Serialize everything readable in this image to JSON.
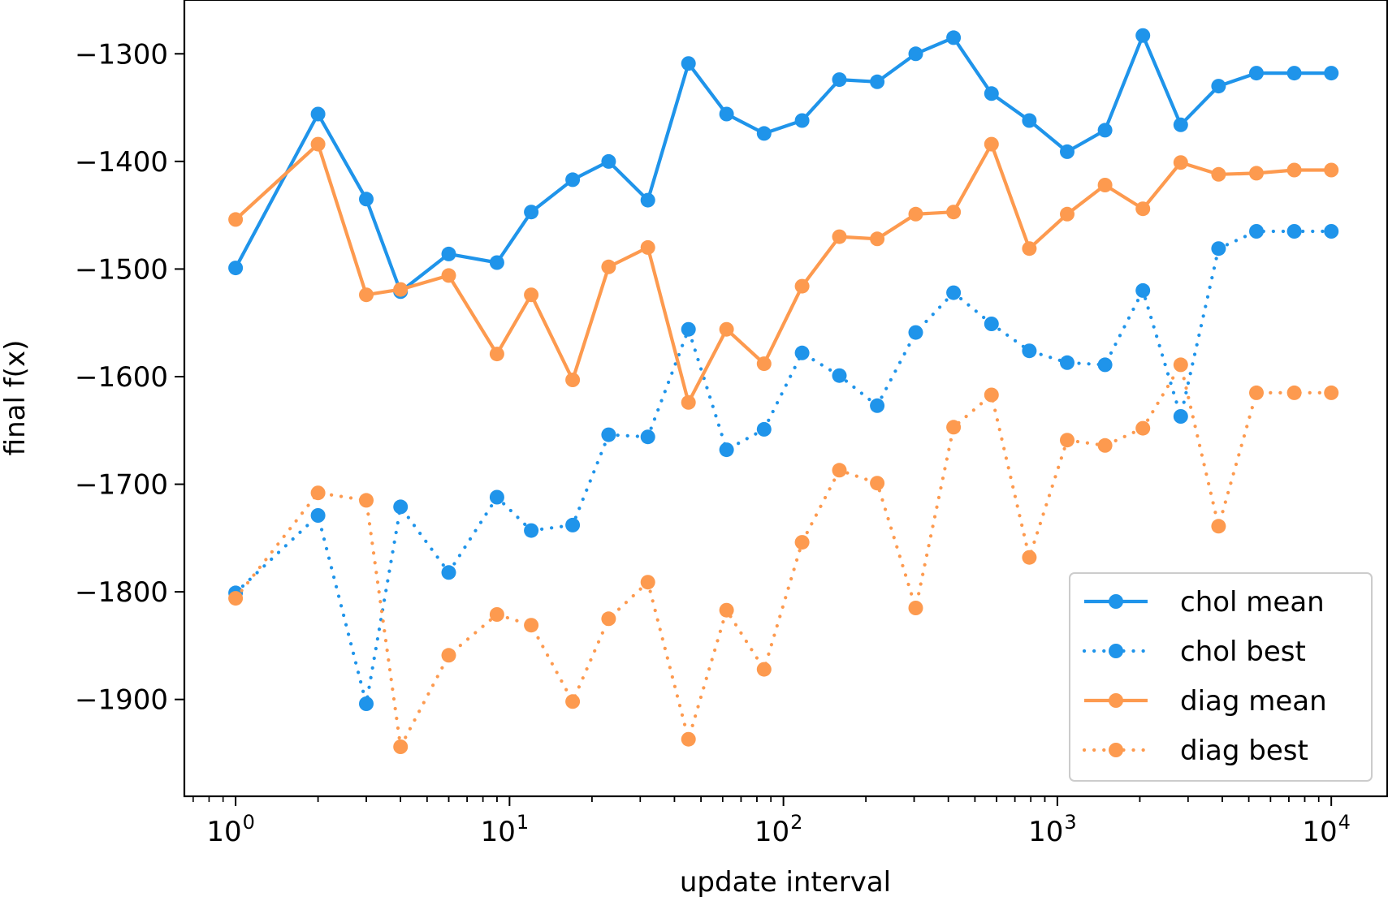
{
  "chart_data": {
    "type": "line",
    "title": "",
    "xlabel": "update interval",
    "ylabel": "final f(x)",
    "xscale": "log",
    "xlim": [
      0.65,
      16000
    ],
    "ylim": [
      -1990,
      -1250
    ],
    "grid": false,
    "legend_position": "lower-right",
    "x_ticks": [
      {
        "value": 1,
        "base": "10",
        "exp": "0"
      },
      {
        "value": 10,
        "base": "10",
        "exp": "1"
      },
      {
        "value": 100,
        "base": "10",
        "exp": "2"
      },
      {
        "value": 1000,
        "base": "10",
        "exp": "3"
      },
      {
        "value": 10000,
        "base": "10",
        "exp": "4"
      }
    ],
    "y_ticks": [
      {
        "value": -1300,
        "label": "−1300"
      },
      {
        "value": -1400,
        "label": "−1400"
      },
      {
        "value": -1500,
        "label": "−1500"
      },
      {
        "value": -1600,
        "label": "−1600"
      },
      {
        "value": -1700,
        "label": "−1700"
      },
      {
        "value": -1800,
        "label": "−1800"
      },
      {
        "value": -1900,
        "label": "−1900"
      }
    ],
    "x": [
      1,
      2,
      3,
      4,
      6,
      9,
      12,
      17,
      23,
      32,
      45,
      62,
      85,
      117,
      160,
      220,
      304,
      418,
      575,
      790,
      1086,
      1493,
      2052,
      2821,
      3877,
      5329,
      7325,
      10000
    ],
    "series": [
      {
        "name": "chol mean",
        "color": "#1f94ea",
        "style": "solid",
        "values": [
          -1499,
          -1356,
          -1435,
          -1521,
          -1486,
          -1494,
          -1447,
          -1417,
          -1400,
          -1436,
          -1309,
          -1356,
          -1374,
          -1362,
          -1324,
          -1326,
          -1300,
          -1285,
          -1337,
          -1362,
          -1391,
          -1371,
          -1283,
          -1366,
          -1330,
          -1318,
          -1318,
          -1318
        ]
      },
      {
        "name": "chol best",
        "color": "#1f94ea",
        "style": "dotted",
        "values": [
          -1801,
          -1729,
          -1904,
          -1721,
          -1782,
          -1712,
          -1743,
          -1738,
          -1654,
          -1656,
          -1556,
          -1668,
          -1649,
          -1578,
          -1599,
          -1627,
          -1559,
          -1522,
          -1551,
          -1576,
          -1587,
          -1589,
          -1520,
          -1637,
          -1481,
          -1465,
          -1465,
          -1465
        ]
      },
      {
        "name": "diag mean",
        "color": "#fd9a4f",
        "style": "solid",
        "values": [
          -1454,
          -1384,
          -1524,
          -1519,
          -1506,
          -1579,
          -1524,
          -1603,
          -1498,
          -1480,
          -1624,
          -1556,
          -1588,
          -1516,
          -1470,
          -1472,
          -1449,
          -1447,
          -1384,
          -1481,
          -1449,
          -1422,
          -1444,
          -1401,
          -1412,
          -1411,
          -1408,
          -1408
        ]
      },
      {
        "name": "diag best",
        "color": "#fd9a4f",
        "style": "dotted",
        "values": [
          -1806,
          -1708,
          -1715,
          -1944,
          -1859,
          -1821,
          -1831,
          -1902,
          -1825,
          -1791,
          -1937,
          -1817,
          -1872,
          -1754,
          -1687,
          -1699,
          -1815,
          -1647,
          -1617,
          -1768,
          -1659,
          -1664,
          -1648,
          -1589,
          -1739,
          -1615,
          -1615,
          -1615
        ]
      }
    ]
  }
}
